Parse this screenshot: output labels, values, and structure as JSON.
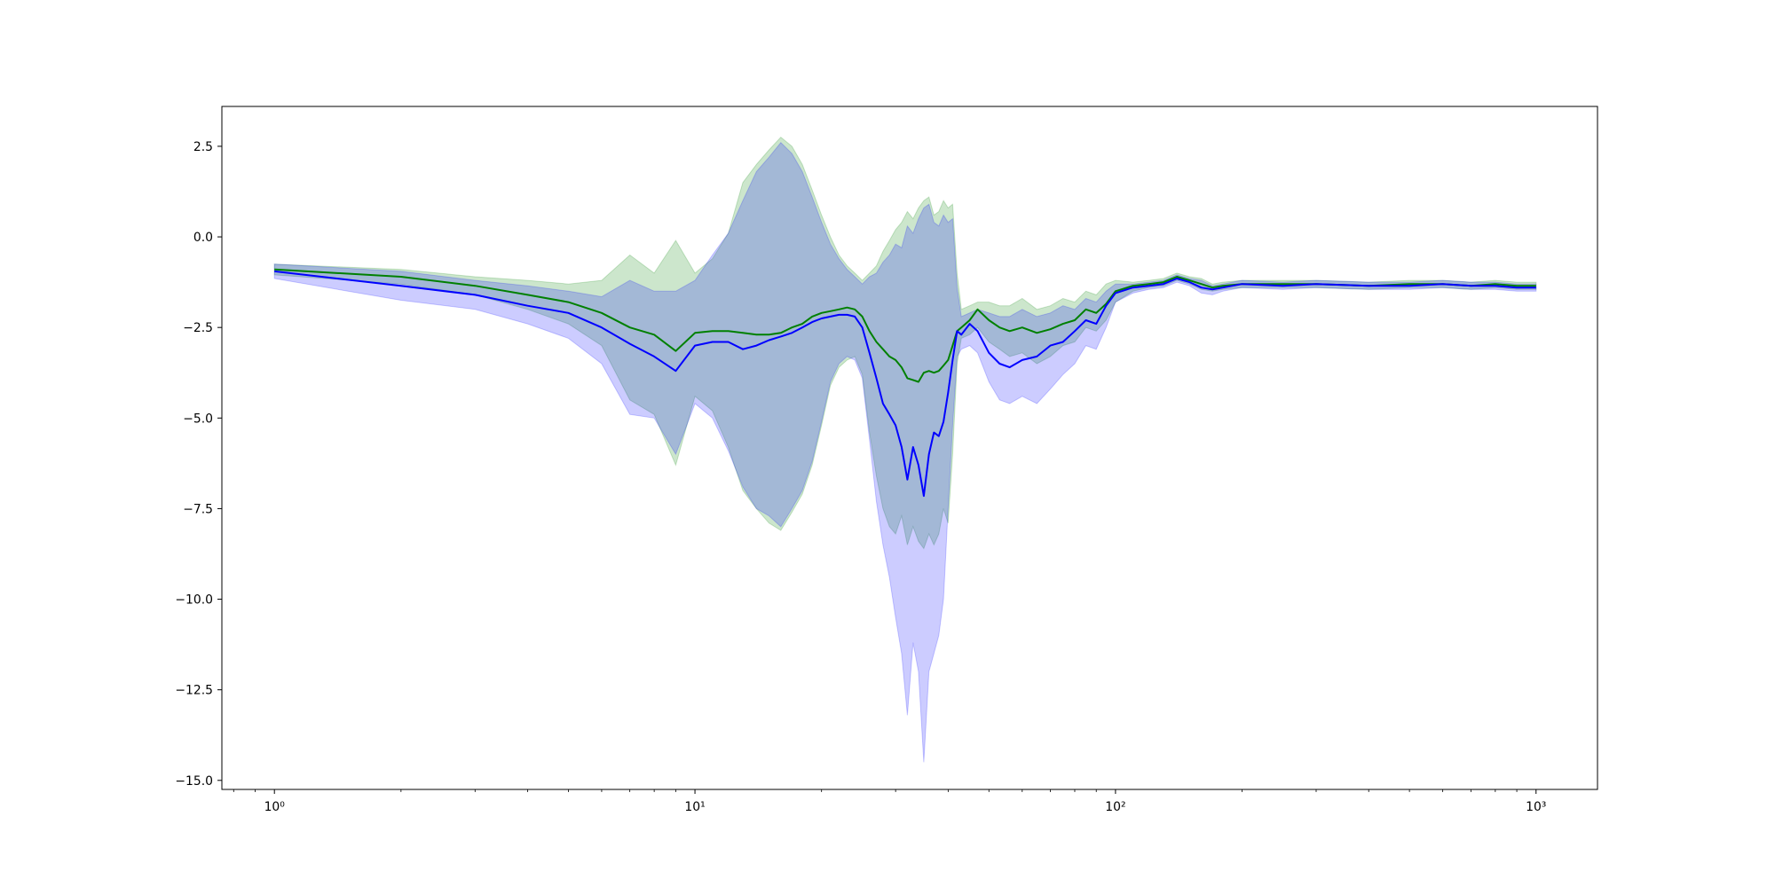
{
  "chart_data": {
    "type": "line",
    "title": "",
    "xlabel": "",
    "ylabel": "",
    "x_scale": "log",
    "xlim": [
      0.75,
      1400
    ],
    "ylim": [
      -15.25,
      3.6
    ],
    "grid": false,
    "legend": "none",
    "x_ticks": [
      {
        "value": 1,
        "label": "10⁰"
      },
      {
        "value": 10,
        "label": "10¹"
      },
      {
        "value": 100,
        "label": "10²"
      },
      {
        "value": 1000,
        "label": "10³"
      }
    ],
    "y_ticks": [
      {
        "value": 2.5,
        "label": "2.5"
      },
      {
        "value": 0.0,
        "label": "0.0"
      },
      {
        "value": -2.5,
        "label": "−2.5"
      },
      {
        "value": -5.0,
        "label": "−5.0"
      },
      {
        "value": -7.5,
        "label": "−7.5"
      },
      {
        "value": -10.0,
        "label": "−10.0"
      },
      {
        "value": -12.5,
        "label": "−12.5"
      },
      {
        "value": -15.0,
        "label": "−15.0"
      }
    ],
    "series": [
      {
        "color": "#008000",
        "band_color": "#008000",
        "band_opacity": 0.2,
        "x": [
          1,
          2,
          3,
          4,
          5,
          6,
          7,
          8,
          9,
          10,
          11,
          12,
          13,
          14,
          15,
          16,
          17,
          18,
          19,
          20,
          21,
          22,
          23,
          24,
          25,
          26,
          27,
          28,
          29,
          30,
          31,
          32,
          33,
          34,
          35,
          36,
          37,
          38,
          39,
          40,
          41,
          42,
          43,
          45,
          47,
          50,
          53,
          56,
          60,
          65,
          70,
          75,
          80,
          85,
          90,
          95,
          100,
          110,
          120,
          130,
          140,
          150,
          160,
          170,
          180,
          200,
          250,
          300,
          400,
          500,
          600,
          700,
          800,
          900,
          1000
        ],
        "y": [
          -0.9,
          -1.1,
          -1.35,
          -1.6,
          -1.8,
          -2.1,
          -2.5,
          -2.7,
          -3.15,
          -2.65,
          -2.6,
          -2.6,
          -2.65,
          -2.7,
          -2.7,
          -2.65,
          -2.5,
          -2.4,
          -2.2,
          -2.1,
          -2.05,
          -2.0,
          -1.95,
          -2.0,
          -2.2,
          -2.6,
          -2.9,
          -3.1,
          -3.3,
          -3.4,
          -3.6,
          -3.9,
          -3.95,
          -4.0,
          -3.75,
          -3.7,
          -3.75,
          -3.7,
          -3.55,
          -3.4,
          -3.0,
          -2.6,
          -2.5,
          -2.3,
          -2.0,
          -2.3,
          -2.5,
          -2.6,
          -2.5,
          -2.65,
          -2.55,
          -2.4,
          -2.3,
          -2.0,
          -2.1,
          -1.85,
          -1.5,
          -1.35,
          -1.3,
          -1.25,
          -1.1,
          -1.2,
          -1.3,
          -1.4,
          -1.35,
          -1.3,
          -1.3,
          -1.3,
          -1.35,
          -1.3,
          -1.3,
          -1.35,
          -1.3,
          -1.35,
          -1.35
        ],
        "upper": [
          -0.75,
          -0.9,
          -1.1,
          -1.2,
          -1.3,
          -1.2,
          -0.5,
          -1.0,
          -0.1,
          -1.0,
          -0.6,
          0.1,
          1.5,
          2.0,
          2.4,
          2.75,
          2.5,
          2.0,
          1.3,
          0.6,
          0.0,
          -0.5,
          -0.8,
          -1.0,
          -1.2,
          -1.0,
          -0.8,
          -0.4,
          -0.1,
          0.2,
          0.4,
          0.7,
          0.5,
          0.8,
          1.0,
          1.1,
          0.6,
          0.7,
          1.0,
          0.8,
          0.9,
          -1.0,
          -2.0,
          -1.9,
          -1.8,
          -1.8,
          -1.9,
          -1.9,
          -1.7,
          -2.0,
          -1.9,
          -1.7,
          -1.8,
          -1.5,
          -1.6,
          -1.3,
          -1.2,
          -1.25,
          -1.2,
          -1.15,
          -1.0,
          -1.1,
          -1.15,
          -1.3,
          -1.25,
          -1.2,
          -1.2,
          -1.2,
          -1.25,
          -1.2,
          -1.2,
          -1.25,
          -1.2,
          -1.25,
          -1.25
        ],
        "lower": [
          -1.05,
          -1.3,
          -1.6,
          -2.0,
          -2.4,
          -3.0,
          -4.5,
          -4.9,
          -6.3,
          -4.4,
          -4.8,
          -5.8,
          -7.0,
          -7.5,
          -7.9,
          -8.1,
          -7.6,
          -7.1,
          -6.3,
          -5.2,
          -4.1,
          -3.6,
          -3.4,
          -3.3,
          -3.8,
          -5.4,
          -6.6,
          -7.5,
          -8.0,
          -8.2,
          -7.7,
          -8.5,
          -8.0,
          -8.4,
          -8.6,
          -8.2,
          -8.5,
          -8.2,
          -7.5,
          -7.9,
          -6.0,
          -3.5,
          -2.8,
          -2.7,
          -2.5,
          -2.9,
          -3.1,
          -3.3,
          -3.2,
          -3.5,
          -3.3,
          -3.0,
          -2.9,
          -2.5,
          -2.6,
          -2.3,
          -1.8,
          -1.5,
          -1.4,
          -1.35,
          -1.2,
          -1.3,
          -1.45,
          -1.5,
          -1.45,
          -1.4,
          -1.4,
          -1.4,
          -1.45,
          -1.4,
          -1.4,
          -1.45,
          -1.4,
          -1.45,
          -1.45
        ]
      },
      {
        "color": "#0000ff",
        "band_color": "#0000ff",
        "band_opacity": 0.2,
        "x": [
          1,
          2,
          3,
          4,
          5,
          6,
          7,
          8,
          9,
          10,
          11,
          12,
          13,
          14,
          15,
          16,
          17,
          18,
          19,
          20,
          21,
          22,
          23,
          24,
          25,
          26,
          27,
          28,
          29,
          30,
          31,
          32,
          33,
          34,
          35,
          36,
          37,
          38,
          39,
          40,
          41,
          42,
          43,
          45,
          47,
          50,
          53,
          56,
          60,
          65,
          70,
          75,
          80,
          85,
          90,
          95,
          100,
          110,
          120,
          130,
          140,
          150,
          160,
          170,
          180,
          200,
          250,
          300,
          400,
          500,
          600,
          700,
          800,
          900,
          1000
        ],
        "y": [
          -0.95,
          -1.35,
          -1.6,
          -1.9,
          -2.1,
          -2.5,
          -2.95,
          -3.3,
          -3.7,
          -3.0,
          -2.9,
          -2.9,
          -3.1,
          -3.0,
          -2.85,
          -2.75,
          -2.65,
          -2.5,
          -2.35,
          -2.25,
          -2.2,
          -2.15,
          -2.15,
          -2.2,
          -2.5,
          -3.2,
          -3.9,
          -4.6,
          -4.9,
          -5.2,
          -5.8,
          -6.7,
          -5.8,
          -6.3,
          -7.15,
          -6.0,
          -5.4,
          -5.5,
          -5.1,
          -4.3,
          -3.4,
          -2.6,
          -2.7,
          -2.4,
          -2.6,
          -3.2,
          -3.5,
          -3.6,
          -3.4,
          -3.3,
          -3.0,
          -2.9,
          -2.6,
          -2.3,
          -2.4,
          -1.9,
          -1.55,
          -1.4,
          -1.35,
          -1.3,
          -1.15,
          -1.25,
          -1.4,
          -1.45,
          -1.4,
          -1.3,
          -1.35,
          -1.3,
          -1.35,
          -1.35,
          -1.3,
          -1.35,
          -1.35,
          -1.4,
          -1.4
        ],
        "upper": [
          -0.75,
          -0.95,
          -1.2,
          -1.35,
          -1.5,
          -1.65,
          -1.2,
          -1.5,
          -1.5,
          -1.2,
          -0.5,
          0.1,
          1.0,
          1.8,
          2.2,
          2.6,
          2.3,
          1.8,
          1.1,
          0.4,
          -0.2,
          -0.6,
          -0.9,
          -1.1,
          -1.3,
          -1.1,
          -1.0,
          -0.7,
          -0.5,
          -0.2,
          -0.3,
          0.3,
          0.1,
          0.5,
          0.8,
          0.9,
          0.4,
          0.3,
          0.6,
          0.4,
          0.5,
          -1.4,
          -2.2,
          -2.1,
          -2.0,
          -2.1,
          -2.2,
          -2.2,
          -2.0,
          -2.2,
          -2.1,
          -1.9,
          -2.0,
          -1.7,
          -1.8,
          -1.5,
          -1.3,
          -1.3,
          -1.25,
          -1.2,
          -1.05,
          -1.15,
          -1.2,
          -1.35,
          -1.3,
          -1.2,
          -1.25,
          -1.2,
          -1.25,
          -1.25,
          -1.2,
          -1.25,
          -1.25,
          -1.3,
          -1.3
        ],
        "lower": [
          -1.15,
          -1.75,
          -2.0,
          -2.4,
          -2.8,
          -3.5,
          -4.9,
          -5.0,
          -6.0,
          -4.6,
          -5.0,
          -5.9,
          -6.9,
          -7.5,
          -7.7,
          -8.0,
          -7.5,
          -7.0,
          -6.2,
          -5.1,
          -4.0,
          -3.5,
          -3.3,
          -3.4,
          -3.9,
          -5.6,
          -7.3,
          -8.5,
          -9.4,
          -10.5,
          -11.5,
          -13.2,
          -11.2,
          -12.0,
          -14.5,
          -12.0,
          -11.5,
          -11.0,
          -10.0,
          -7.5,
          -5.2,
          -3.3,
          -3.1,
          -3.0,
          -3.2,
          -4.0,
          -4.5,
          -4.6,
          -4.4,
          -4.6,
          -4.2,
          -3.8,
          -3.5,
          -3.0,
          -3.1,
          -2.5,
          -1.8,
          -1.55,
          -1.45,
          -1.4,
          -1.25,
          -1.35,
          -1.55,
          -1.6,
          -1.5,
          -1.4,
          -1.45,
          -1.4,
          -1.45,
          -1.45,
          -1.4,
          -1.45,
          -1.45,
          -1.5,
          -1.5
        ]
      }
    ]
  }
}
